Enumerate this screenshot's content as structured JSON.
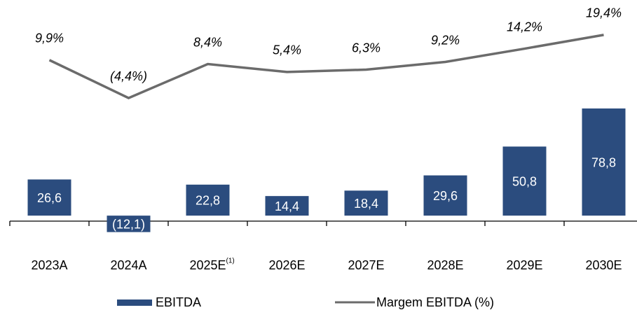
{
  "chart_data": {
    "type": "bar_line",
    "categories": [
      "2023A",
      "2024A",
      "2025E",
      "2026E",
      "2027E",
      "2028E",
      "2029E",
      "2030E"
    ],
    "category_notes": [
      null,
      null,
      "(1)",
      null,
      null,
      null,
      null,
      null
    ],
    "series": [
      {
        "name": "EBITDA",
        "type": "bar",
        "color": "#2b4c7e",
        "values": [
          26.6,
          -12.1,
          22.8,
          14.4,
          18.4,
          29.6,
          50.8,
          78.8
        ],
        "value_labels": [
          "26,6",
          "(12,1)",
          "22,8",
          "14,4",
          "18,4",
          "29,6",
          "50,8",
          "78,8"
        ]
      },
      {
        "name": "Margem EBITDA (%)",
        "type": "line",
        "axis": "y2",
        "color": "#6b6b6b",
        "values": [
          9.9,
          -4.4,
          8.4,
          5.4,
          6.3,
          9.2,
          14.2,
          19.4
        ],
        "value_labels": [
          "9,9%",
          "(4,4%)",
          "8,4%",
          "5,4%",
          "6,3%",
          "9,2%",
          "14,2%",
          "19,4%"
        ]
      }
    ],
    "ylim": [
      -20,
      138
    ],
    "y2lim": [
      -59,
      22
    ],
    "legend": "bottom"
  }
}
